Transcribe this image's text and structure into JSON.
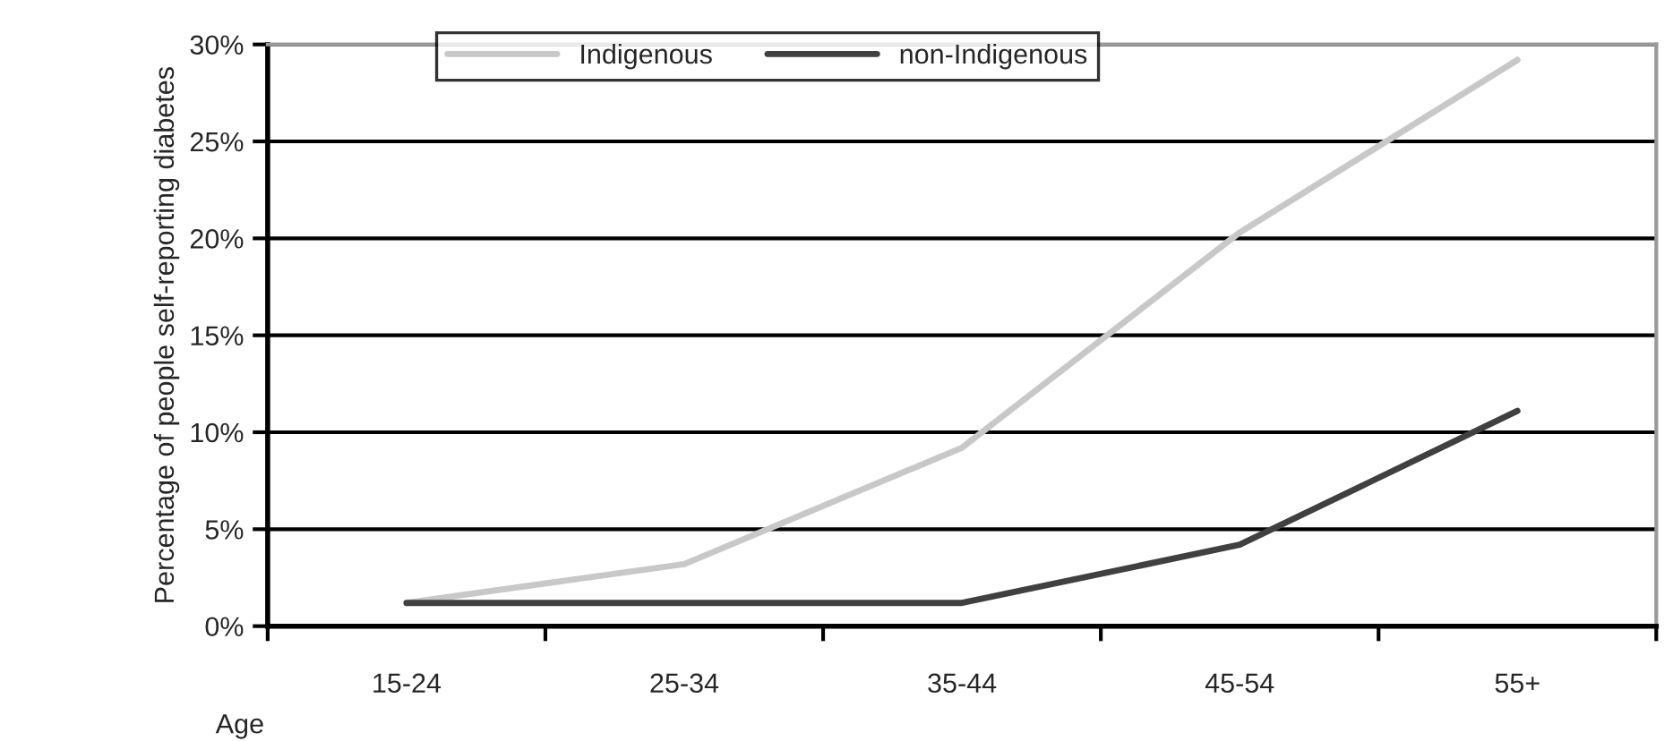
{
  "chart_data": {
    "type": "line",
    "xlabel": "Age",
    "ylabel": "Percentage of people self-reporting diabetes",
    "categories": [
      "15-24",
      "25-34",
      "35-44",
      "45-54",
      "55+"
    ],
    "series": [
      {
        "name": "Indigenous",
        "color": "#c8c8c8",
        "values": [
          1.2,
          3.2,
          9.2,
          20.3,
          29.2
        ]
      },
      {
        "name": "non-Indigenous",
        "color": "#404040",
        "values": [
          1.2,
          1.2,
          1.2,
          4.2,
          11.1
        ]
      }
    ],
    "ylim": [
      0,
      30
    ],
    "yticks": [
      {
        "value": 0,
        "label": "0%"
      },
      {
        "value": 5,
        "label": "5%"
      },
      {
        "value": 10,
        "label": "10%"
      },
      {
        "value": 15,
        "label": "15%"
      },
      {
        "value": 20,
        "label": "20%"
      },
      {
        "value": 25,
        "label": "25%"
      },
      {
        "value": 30,
        "label": "30%"
      }
    ],
    "grid": "y",
    "legend": "top",
    "marker": "none",
    "line_style": "solid"
  }
}
